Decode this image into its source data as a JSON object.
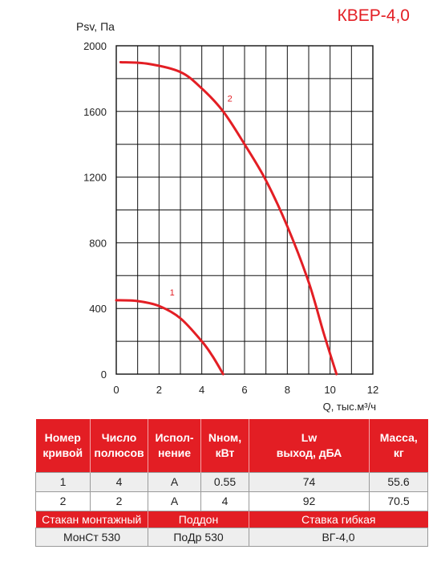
{
  "model": "КВЕР-4,0",
  "chart_data": {
    "type": "line",
    "ylabel": "Psv, Па",
    "xlabel": "Q, тыс.м³/ч",
    "xlim": [
      0,
      12
    ],
    "ylim": [
      0,
      2000
    ],
    "x_ticks": [
      0,
      2,
      4,
      6,
      8,
      10,
      12
    ],
    "y_ticks": [
      0,
      400,
      800,
      1200,
      1600,
      2000
    ],
    "grid": true,
    "series": [
      {
        "name": "1",
        "color": "#e31e24",
        "points": [
          [
            0,
            450
          ],
          [
            1,
            445
          ],
          [
            2,
            415
          ],
          [
            3,
            340
          ],
          [
            4,
            200
          ],
          [
            4.5,
            110
          ],
          [
            5,
            0
          ]
        ]
      },
      {
        "name": "2",
        "color": "#e31e24",
        "points": [
          [
            0.2,
            1900
          ],
          [
            1.5,
            1890
          ],
          [
            3,
            1840
          ],
          [
            4,
            1740
          ],
          [
            5,
            1600
          ],
          [
            6,
            1400
          ],
          [
            7,
            1180
          ],
          [
            8,
            900
          ],
          [
            9,
            560
          ],
          [
            9.7,
            250
          ],
          [
            10.3,
            0
          ]
        ]
      }
    ]
  },
  "table": {
    "headers": [
      "Номер кривой",
      "Число полюсов",
      "Испол-нение",
      "Nном, кВт",
      "Lw выход, дБА",
      "Масса, кг"
    ],
    "rows": [
      [
        "1",
        "4",
        "A",
        "0.55",
        "74",
        "55.6"
      ],
      [
        "2",
        "2",
        "A",
        "4",
        "92",
        "70.5"
      ]
    ],
    "accessories_headers": [
      "Стакан монтажный",
      "Поддон",
      "Ставка гибкая"
    ],
    "accessories_values": [
      "МонСт 530",
      "ПоДр 530",
      "ВГ-4,0"
    ]
  }
}
